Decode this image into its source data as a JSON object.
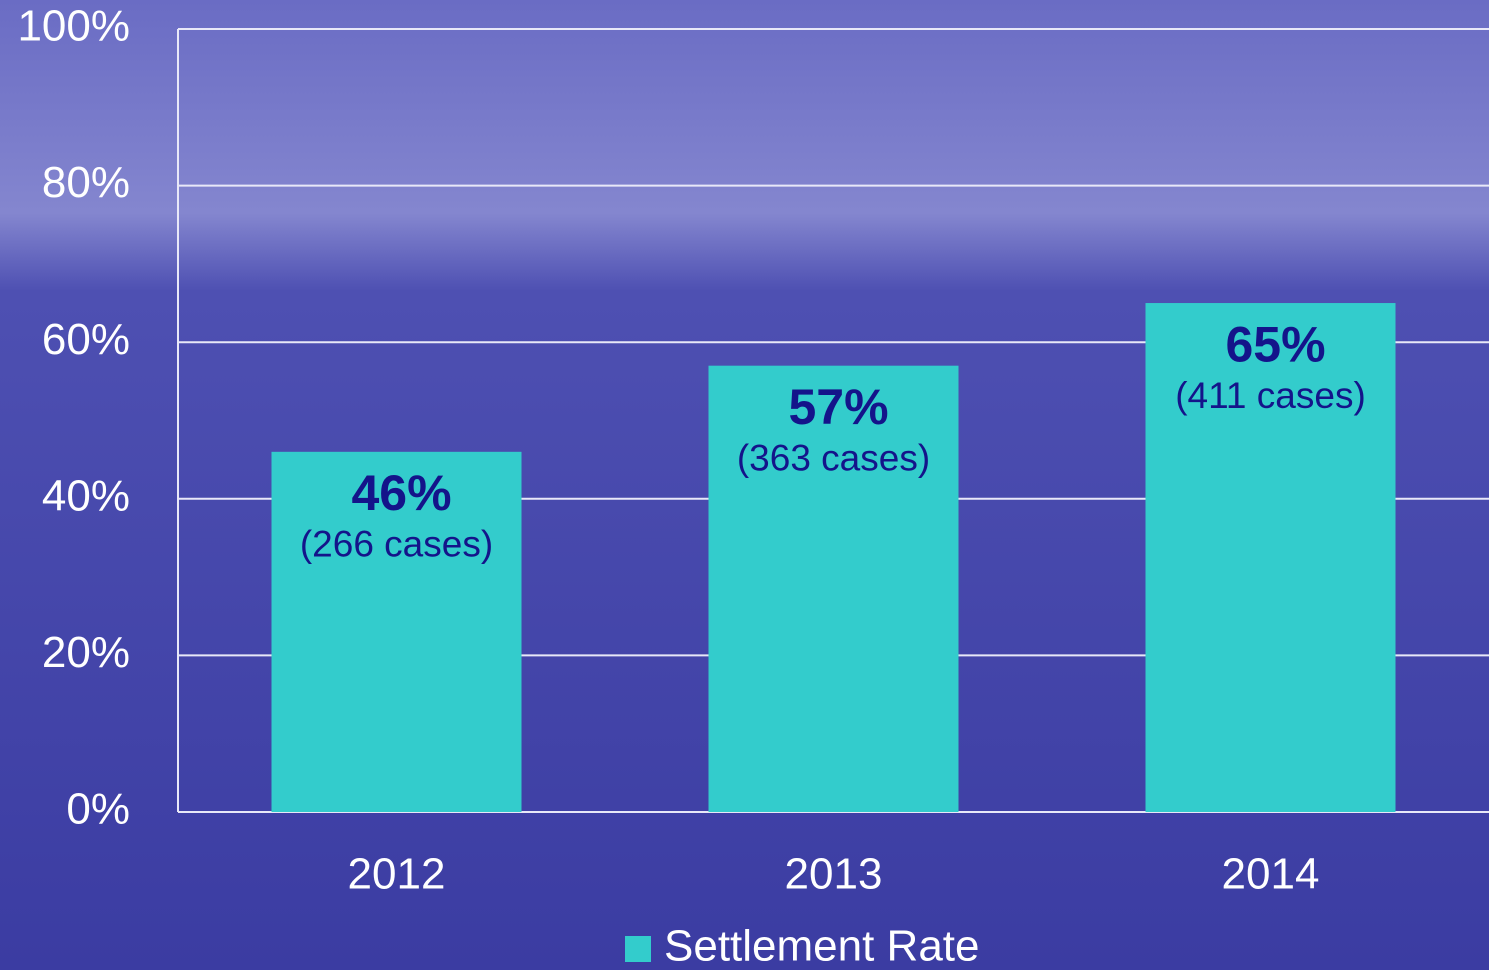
{
  "chart_data": {
    "type": "bar",
    "categories": [
      "2012",
      "2013",
      "2014"
    ],
    "series": [
      {
        "name": "Settlement Rate",
        "color": "#33cccc",
        "values": [
          46,
          57,
          65
        ]
      }
    ],
    "value_labels": [
      "46%",
      "57%",
      "65%"
    ],
    "annotations": [
      "(266 cases)",
      "(363 cases)",
      "(411 cases)"
    ],
    "ylim": [
      0,
      100
    ],
    "yticks": [
      {
        "value": 0,
        "label": "0%"
      },
      {
        "value": 20,
        "label": "20%"
      },
      {
        "value": 40,
        "label": "40%"
      },
      {
        "value": 60,
        "label": "60%"
      },
      {
        "value": 80,
        "label": "80%"
      },
      {
        "value": 100,
        "label": "100%"
      }
    ],
    "grid": true,
    "legend": "bottom"
  }
}
